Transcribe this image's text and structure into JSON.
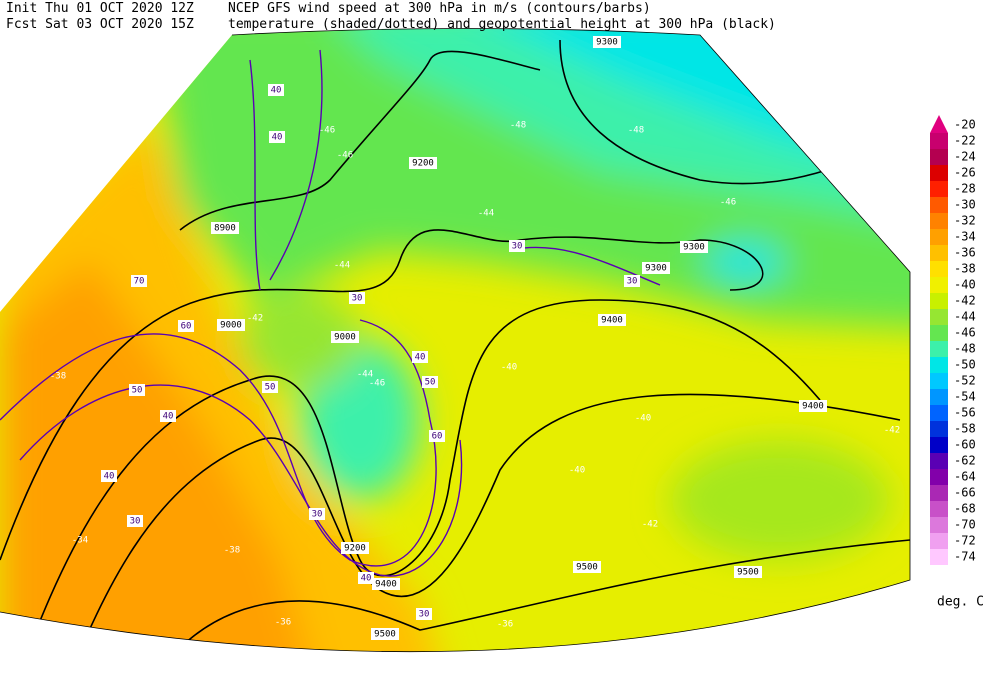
{
  "header": {
    "init": "Init  Thu 01 OCT 2020 12Z",
    "forecast": "Fcst Sat 03 OCT 2020 15Z",
    "title": "NCEP GFS wind speed at 300 hPa in m/s (contours/barbs)",
    "subtitle": "temperature (shaded/dotted) and geopotential height at 300 hPa (black)"
  },
  "colorbar": {
    "levels": [
      -20,
      -22,
      -24,
      -26,
      -28,
      -30,
      -32,
      -34,
      -36,
      -38,
      -40,
      -42,
      -44,
      -46,
      -48,
      -50,
      -52,
      -54,
      -56,
      -58,
      -60,
      -62,
      -64,
      -66,
      -68,
      -70,
      -72,
      -74
    ],
    "colors": [
      "#e0007f",
      "#c8006e",
      "#b40050",
      "#dc0000",
      "#ff2000",
      "#ff5a00",
      "#ff8200",
      "#ffa000",
      "#ffc000",
      "#ffe000",
      "#f0f000",
      "#c8f000",
      "#96e632",
      "#64e650",
      "#3cf0aa",
      "#00e6e6",
      "#00c8ff",
      "#0096ff",
      "#0064ff",
      "#0032dc",
      "#0000c8",
      "#5a00b4",
      "#8200aa",
      "#aa28b4",
      "#c850c8",
      "#dc78dc",
      "#f0a0f0",
      "#ffc8ff"
    ],
    "unit": "deg. C"
  },
  "height_labels": [
    9300,
    9300,
    9300,
    9400,
    9400,
    9400,
    9500,
    9500,
    9500,
    8900,
    9000,
    9000,
    9200,
    9200
  ],
  "wind_labels": [
    40,
    40,
    30,
    30,
    40,
    50,
    60,
    70,
    50,
    40,
    40,
    30,
    30,
    40,
    30,
    50,
    60,
    30
  ],
  "temp_labels": [
    -46,
    -46,
    -48,
    -48,
    -46,
    -44,
    -42,
    -44,
    -44,
    -46,
    -40,
    -40,
    -40,
    -42,
    -42,
    -38,
    -38,
    -36,
    -40,
    -34,
    -36
  ]
}
